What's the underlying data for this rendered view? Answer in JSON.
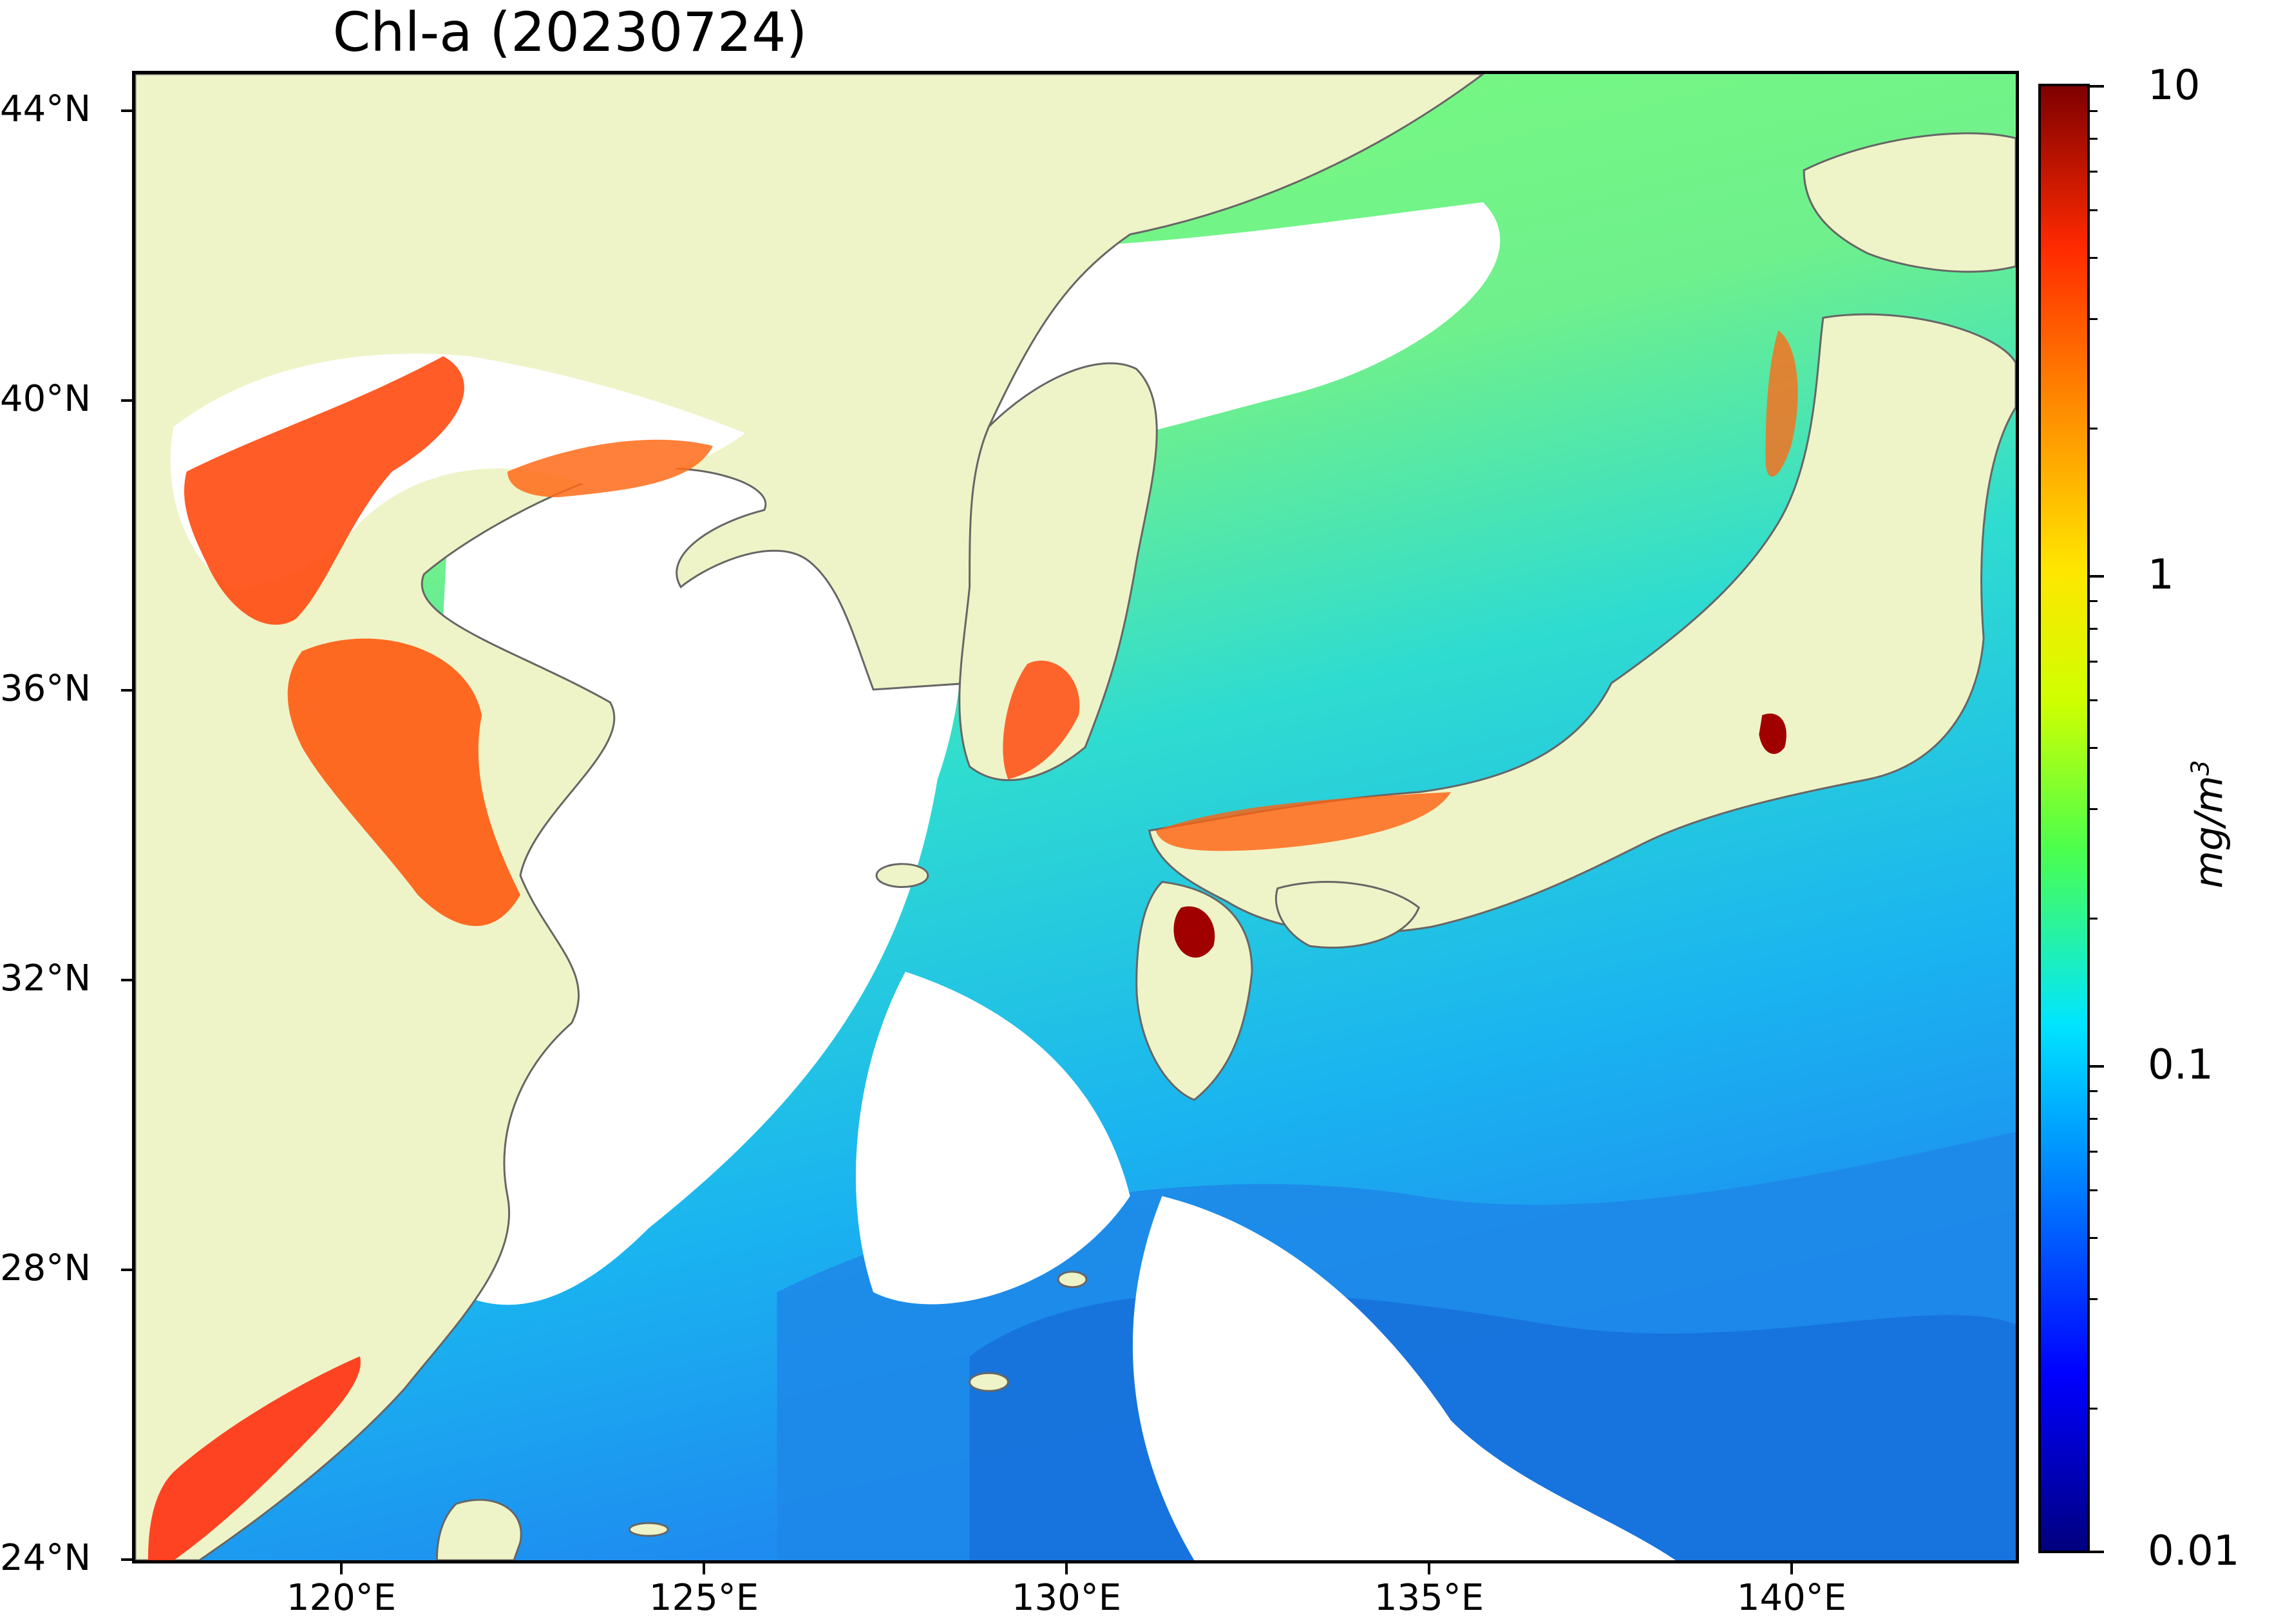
{
  "title": "Chl-a (20230724)",
  "map": {
    "lon_range": [
      117,
      143
    ],
    "lat_range": [
      24,
      44.5
    ],
    "land_color": "#eff4c8",
    "coast_color": "#666666",
    "cloud_color": "#ffffff",
    "colormap": "jet",
    "lat_ticks": [
      "44°N",
      "40°N",
      "36°N",
      "32°N",
      "28°N",
      "24°N"
    ],
    "lon_ticks": [
      "120°E",
      "125°E",
      "130°E",
      "135°E",
      "140°E"
    ]
  },
  "colorbar": {
    "scale": "log",
    "range": [
      0.01,
      10
    ],
    "tick_labels": [
      "10",
      "1",
      "0.1",
      "0.01"
    ],
    "unit": "mg/m",
    "unit_superscript": "3"
  }
}
